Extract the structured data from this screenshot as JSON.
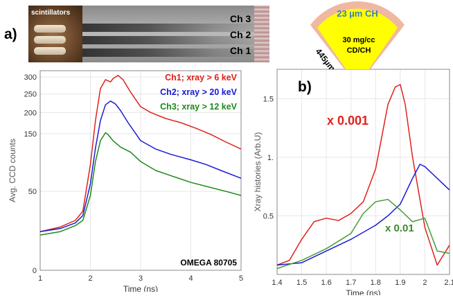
{
  "panel_a": {
    "label": "a)",
    "photo": {
      "holder_label": "scintillators",
      "channels": [
        {
          "label": "Ch 3",
          "color": "#4db84d"
        },
        {
          "label": "Ch 2",
          "color": "#1a1ad6"
        },
        {
          "label": "Ch 1",
          "color": "#e0201a"
        }
      ]
    },
    "annotation": "OMEGA 80705"
  },
  "panel_b": {
    "label": "b)",
    "target": {
      "shell_label": "23 µm CH",
      "fill_label_line1": "30 mg/cc",
      "fill_label_line2": "CD/CH",
      "radius_label": "445µm",
      "shell_color": "#f0b8a0",
      "fill_color": "#ffff00",
      "shell_text_color": "#3a7fbf"
    },
    "annotations": [
      {
        "text": "x 0.001",
        "color": "#e0201a"
      },
      {
        "text": "x 0.01",
        "color": "#3a8a2a"
      }
    ]
  },
  "chart_data": [
    {
      "type": "line",
      "xlabel": "Time (ns)",
      "ylabel": "Avg. CCD counts",
      "xlim": [
        1,
        5
      ],
      "ylim": [
        0,
        320
      ],
      "y_scale": "sqrt",
      "xticks": [
        1,
        2,
        3,
        4,
        5
      ],
      "yticks": [
        0,
        50,
        150,
        200,
        250,
        300
      ],
      "grid": true,
      "legend_position": "top-right",
      "series": [
        {
          "name": "Ch1; xray > 6 keV",
          "color": "#e0201a",
          "x": [
            1.0,
            1.4,
            1.7,
            1.85,
            2.0,
            2.1,
            2.2,
            2.3,
            2.4,
            2.45,
            2.55,
            2.65,
            2.8,
            3.0,
            3.2,
            3.5,
            3.8,
            4.1,
            4.4,
            4.7,
            5.0
          ],
          "y": [
            12,
            15,
            20,
            28,
            90,
            180,
            265,
            292,
            285,
            295,
            305,
            292,
            255,
            215,
            200,
            185,
            175,
            162,
            148,
            132,
            118
          ]
        },
        {
          "name": "Ch2; xray > 20 keV",
          "color": "#1a1ad6",
          "x": [
            1.0,
            1.4,
            1.7,
            1.85,
            2.0,
            2.1,
            2.2,
            2.3,
            2.4,
            2.5,
            2.6,
            2.75,
            3.0,
            3.3,
            3.6,
            4.0,
            4.3,
            4.6,
            5.0
          ],
          "y": [
            12,
            14,
            18,
            24,
            60,
            120,
            180,
            220,
            230,
            222,
            205,
            175,
            135,
            118,
            108,
            98,
            90,
            80,
            68
          ]
        },
        {
          "name": "Ch3; xray > 12 keV",
          "color": "#1a8a1a",
          "x": [
            1.0,
            1.4,
            1.7,
            1.85,
            2.0,
            2.1,
            2.2,
            2.3,
            2.35,
            2.45,
            2.6,
            2.8,
            3.0,
            3.3,
            3.6,
            4.0,
            4.4,
            4.7,
            5.0
          ],
          "y": [
            10,
            12,
            16,
            20,
            45,
            95,
            135,
            152,
            148,
            135,
            122,
            112,
            95,
            80,
            72,
            62,
            55,
            50,
            45
          ]
        }
      ]
    },
    {
      "type": "line",
      "xlabel": "Time (ns)",
      "ylabel": "Xray histories (Arb.U)",
      "xlim": [
        1.4,
        2.1
      ],
      "ylim": [
        0,
        1.75
      ],
      "xticks": [
        1.4,
        1.5,
        1.6,
        1.7,
        1.8,
        1.9,
        2.0,
        2.1
      ],
      "yticks": [
        0.5,
        1.0,
        1.5
      ],
      "ytick_labels": [
        "0.5",
        "1.",
        "1.5"
      ],
      "grid": true,
      "series": [
        {
          "name": "",
          "color": "#e0201a",
          "x": [
            1.4,
            1.45,
            1.5,
            1.55,
            1.6,
            1.65,
            1.7,
            1.75,
            1.8,
            1.85,
            1.88,
            1.9,
            1.92,
            1.95,
            2.0,
            2.05,
            2.1
          ],
          "y": [
            0.08,
            0.12,
            0.3,
            0.45,
            0.48,
            0.46,
            0.52,
            0.62,
            0.9,
            1.45,
            1.6,
            1.62,
            1.45,
            1.0,
            0.4,
            0.08,
            0.25
          ]
        },
        {
          "name": "",
          "color": "#1a1ad6",
          "x": [
            1.4,
            1.5,
            1.6,
            1.7,
            1.8,
            1.85,
            1.9,
            1.95,
            1.98,
            2.0,
            2.05,
            2.1
          ],
          "y": [
            0.08,
            0.1,
            0.2,
            0.3,
            0.42,
            0.5,
            0.6,
            0.82,
            0.94,
            0.92,
            0.82,
            0.72
          ]
        },
        {
          "name": "",
          "color": "#4a9a3a",
          "x": [
            1.4,
            1.5,
            1.6,
            1.7,
            1.75,
            1.8,
            1.85,
            1.9,
            1.95,
            2.0,
            2.05,
            2.1
          ],
          "y": [
            0.05,
            0.12,
            0.22,
            0.35,
            0.52,
            0.62,
            0.64,
            0.55,
            0.45,
            0.48,
            0.2,
            0.18
          ]
        }
      ]
    }
  ]
}
